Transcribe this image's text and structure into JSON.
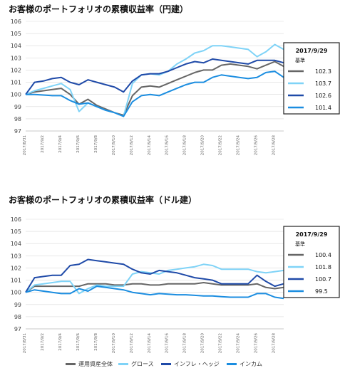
{
  "chart_data": [
    {
      "type": "line",
      "title": "お客様のポートフォリオの累積収益率（円建）",
      "ylim": [
        97,
        106
      ],
      "yticks": [
        97,
        98,
        99,
        100,
        101,
        102,
        103,
        104,
        105,
        106
      ],
      "x": [
        "2017/8/31",
        "2017/9/1",
        "2017/9/2",
        "2017/9/3",
        "2017/9/4",
        "2017/9/5",
        "2017/9/6",
        "2017/9/7",
        "2017/9/8",
        "2017/9/9",
        "2017/9/10",
        "2017/9/11",
        "2017/9/12",
        "2017/9/13",
        "2017/9/14",
        "2017/9/15",
        "2017/9/16",
        "2017/9/17",
        "2017/9/18",
        "2017/9/19",
        "2017/9/20",
        "2017/9/21",
        "2017/9/22",
        "2017/9/23",
        "2017/9/24",
        "2017/9/25",
        "2017/9/26",
        "2017/9/27",
        "2017/9/28",
        "2017/9/29"
      ],
      "xtick_labels": [
        "2017/8/31",
        "2017/9/2",
        "2017/9/4",
        "2017/9/6",
        "2017/9/8",
        "2017/9/10",
        "2017/9/12",
        "2017/9/14",
        "2017/9/16",
        "2017/9/18",
        "2017/9/20",
        "2017/9/22",
        "2017/9/24",
        "2017/9/26",
        "2017/9/28"
      ],
      "series": [
        {
          "name": "運用資産全体",
          "color": "#666666",
          "values": [
            100,
            100.2,
            100.3,
            100.4,
            100.5,
            100.0,
            99.2,
            99.6,
            99.1,
            98.8,
            98.5,
            98.3,
            99.9,
            100.6,
            100.7,
            100.6,
            100.9,
            101.2,
            101.5,
            101.8,
            102.0,
            102.0,
            102.4,
            102.5,
            102.4,
            102.3,
            102.1,
            102.4,
            102.7,
            102.3
          ]
        },
        {
          "name": "グロース",
          "color": "#7fd3f7",
          "values": [
            100,
            100.3,
            100.5,
            100.7,
            100.9,
            100.4,
            98.6,
            99.3,
            99.0,
            98.7,
            98.5,
            98.2,
            100.9,
            101.6,
            101.7,
            101.6,
            101.9,
            102.5,
            102.9,
            103.4,
            103.6,
            104.0,
            104.0,
            103.9,
            103.8,
            103.7,
            103.1,
            103.5,
            104.1,
            103.7
          ]
        },
        {
          "name": "インフレ・ヘッジ",
          "color": "#1f4aa8",
          "values": [
            100,
            101.0,
            101.1,
            101.3,
            101.4,
            101.0,
            100.8,
            101.2,
            101.0,
            100.8,
            100.6,
            100.2,
            101.1,
            101.6,
            101.7,
            101.7,
            101.9,
            102.2,
            102.5,
            102.7,
            102.6,
            102.9,
            102.8,
            102.7,
            102.6,
            102.5,
            102.8,
            102.8,
            102.8,
            102.6
          ]
        },
        {
          "name": "インカム",
          "color": "#1b8de0",
          "values": [
            100,
            100.0,
            99.95,
            99.9,
            99.9,
            99.5,
            99.2,
            99.3,
            99.0,
            98.7,
            98.5,
            98.2,
            99.4,
            99.9,
            100.0,
            99.9,
            100.2,
            100.5,
            100.8,
            101.0,
            101.0,
            101.4,
            101.6,
            101.5,
            101.4,
            101.3,
            101.4,
            101.8,
            101.9,
            101.4
          ]
        }
      ],
      "legend_box": {
        "date": "2017/9/29",
        "subtitle": "基準",
        "values": [
          "102.3",
          "103.7",
          "102.6",
          "101.4"
        ]
      }
    },
    {
      "type": "line",
      "title": "お客様のポートフォリオの累積収益率（ドル建）",
      "ylim": [
        97,
        106
      ],
      "yticks": [
        97,
        98,
        99,
        100,
        101,
        102,
        103,
        104,
        105,
        106
      ],
      "x": [
        "2017/8/31",
        "2017/9/1",
        "2017/9/2",
        "2017/9/3",
        "2017/9/4",
        "2017/9/5",
        "2017/9/6",
        "2017/9/7",
        "2017/9/8",
        "2017/9/9",
        "2017/9/10",
        "2017/9/11",
        "2017/9/12",
        "2017/9/13",
        "2017/9/14",
        "2017/9/15",
        "2017/9/16",
        "2017/9/17",
        "2017/9/18",
        "2017/9/19",
        "2017/9/20",
        "2017/9/21",
        "2017/9/22",
        "2017/9/23",
        "2017/9/24",
        "2017/9/25",
        "2017/9/26",
        "2017/9/27",
        "2017/9/28",
        "2017/9/29"
      ],
      "xtick_labels": [
        "2017/8/31",
        "2017/9/2",
        "2017/9/4",
        "2017/9/6",
        "2017/9/8",
        "2017/9/10",
        "2017/9/12",
        "2017/9/14",
        "2017/9/16",
        "2017/9/18",
        "2017/9/20",
        "2017/9/22",
        "2017/9/24",
        "2017/9/26",
        "2017/9/28"
      ],
      "series": [
        {
          "name": "運用資産全体",
          "color": "#666666",
          "values": [
            100,
            100.5,
            100.5,
            100.5,
            100.5,
            100.5,
            100.5,
            100.7,
            100.7,
            100.7,
            100.6,
            100.6,
            100.7,
            100.7,
            100.6,
            100.6,
            100.7,
            100.7,
            100.7,
            100.7,
            100.8,
            100.7,
            100.6,
            100.6,
            100.6,
            100.6,
            100.7,
            100.4,
            100.3,
            100.4
          ]
        },
        {
          "name": "グロース",
          "color": "#7fd3f7",
          "values": [
            100,
            100.6,
            100.7,
            100.8,
            100.9,
            100.9,
            99.9,
            100.3,
            100.6,
            100.5,
            100.5,
            100.5,
            101.5,
            101.7,
            101.6,
            101.5,
            101.8,
            101.9,
            102.0,
            102.1,
            102.3,
            102.2,
            101.9,
            101.9,
            101.9,
            101.9,
            101.7,
            101.6,
            101.7,
            101.8
          ]
        },
        {
          "name": "インフレ・ヘッジ",
          "color": "#1f4aa8",
          "values": [
            100,
            101.2,
            101.3,
            101.4,
            101.4,
            102.2,
            102.3,
            102.7,
            102.6,
            102.5,
            102.4,
            102.3,
            101.9,
            101.6,
            101.5,
            101.8,
            101.7,
            101.6,
            101.4,
            101.2,
            101.1,
            101.0,
            100.7,
            100.7,
            100.7,
            100.7,
            101.4,
            100.9,
            100.5,
            100.7
          ]
        },
        {
          "name": "インカム",
          "color": "#1b8de0",
          "values": [
            100,
            100.2,
            100.1,
            100.0,
            99.9,
            99.9,
            100.3,
            100.1,
            100.5,
            100.4,
            100.3,
            100.2,
            100.0,
            99.9,
            99.8,
            99.9,
            99.85,
            99.8,
            99.8,
            99.75,
            99.7,
            99.7,
            99.65,
            99.6,
            99.6,
            99.6,
            99.9,
            99.9,
            99.6,
            99.5
          ]
        }
      ],
      "legend_box": {
        "date": "2017/9/29",
        "subtitle": "基準",
        "values": [
          "100.4",
          "101.8",
          "100.7",
          "99.5"
        ]
      }
    }
  ],
  "legend": [
    {
      "label": "運用資産全体",
      "color": "#666666"
    },
    {
      "label": "グロース",
      "color": "#7fd3f7"
    },
    {
      "label": "インフレ・ヘッジ",
      "color": "#1f4aa8"
    },
    {
      "label": "インカム",
      "color": "#1b8de0"
    }
  ]
}
